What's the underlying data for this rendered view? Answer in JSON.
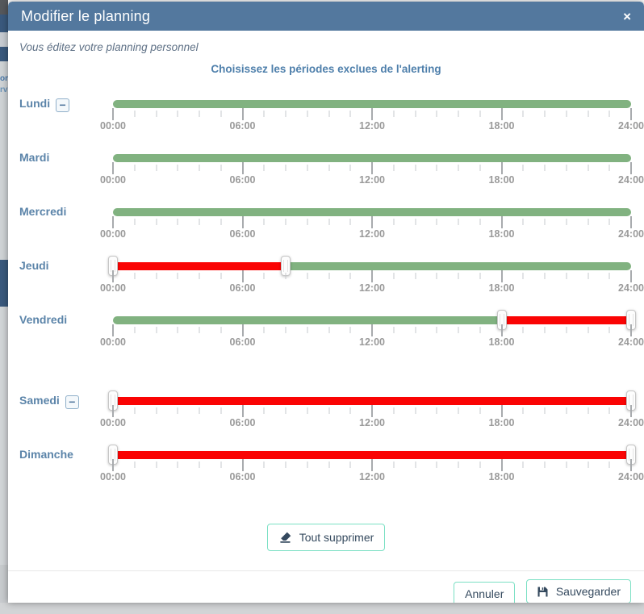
{
  "modal": {
    "title": "Modifier le planning",
    "close_glyph": "×",
    "subtitle": "Vous éditez votre planning personnel",
    "heading": "Choisissez les périodes exclues de l'alerting",
    "remove_button_glyph": "−",
    "actions": {
      "clear_all": "Tout supprimer",
      "cancel": "Annuler",
      "save": "Sauvegarder"
    }
  },
  "slider": {
    "scale_start_hour": 0,
    "scale_end_hour": 24,
    "minor_tick_every_hours": 1,
    "major_tick_every_hours": 6,
    "tick_labels": [
      "00:00",
      "06:00",
      "12:00",
      "18:00",
      "24:00"
    ]
  },
  "days": [
    {
      "label": "Lundi",
      "remove_button": true,
      "excluded_period": null
    },
    {
      "label": "Mardi",
      "remove_button": false,
      "excluded_period": null
    },
    {
      "label": "Mercredi",
      "remove_button": false,
      "excluded_period": null
    },
    {
      "label": "Jeudi",
      "remove_button": false,
      "excluded_period": {
        "from": "00:00",
        "to": "08:00"
      }
    },
    {
      "label": "Vendredi",
      "remove_button": false,
      "excluded_period": {
        "from": "18:00",
        "to": "24:00"
      }
    },
    {
      "label": "Samedi",
      "remove_button": true,
      "excluded_period": {
        "from": "00:00",
        "to": "24:00"
      },
      "extra_gap": true
    },
    {
      "label": "Dimanche",
      "remove_button": false,
      "excluded_period": {
        "from": "00:00",
        "to": "24:00"
      }
    }
  ],
  "colors": {
    "header_bg": "#53789e",
    "included_green": "#81b280",
    "excluded_red": "#fa0404",
    "accent_border_mint": "#7be0c4",
    "day_label_blue": "#5b84a9",
    "button_text_navy": "#34495e"
  },
  "background_fragments": [
    "on",
    "rv"
  ]
}
